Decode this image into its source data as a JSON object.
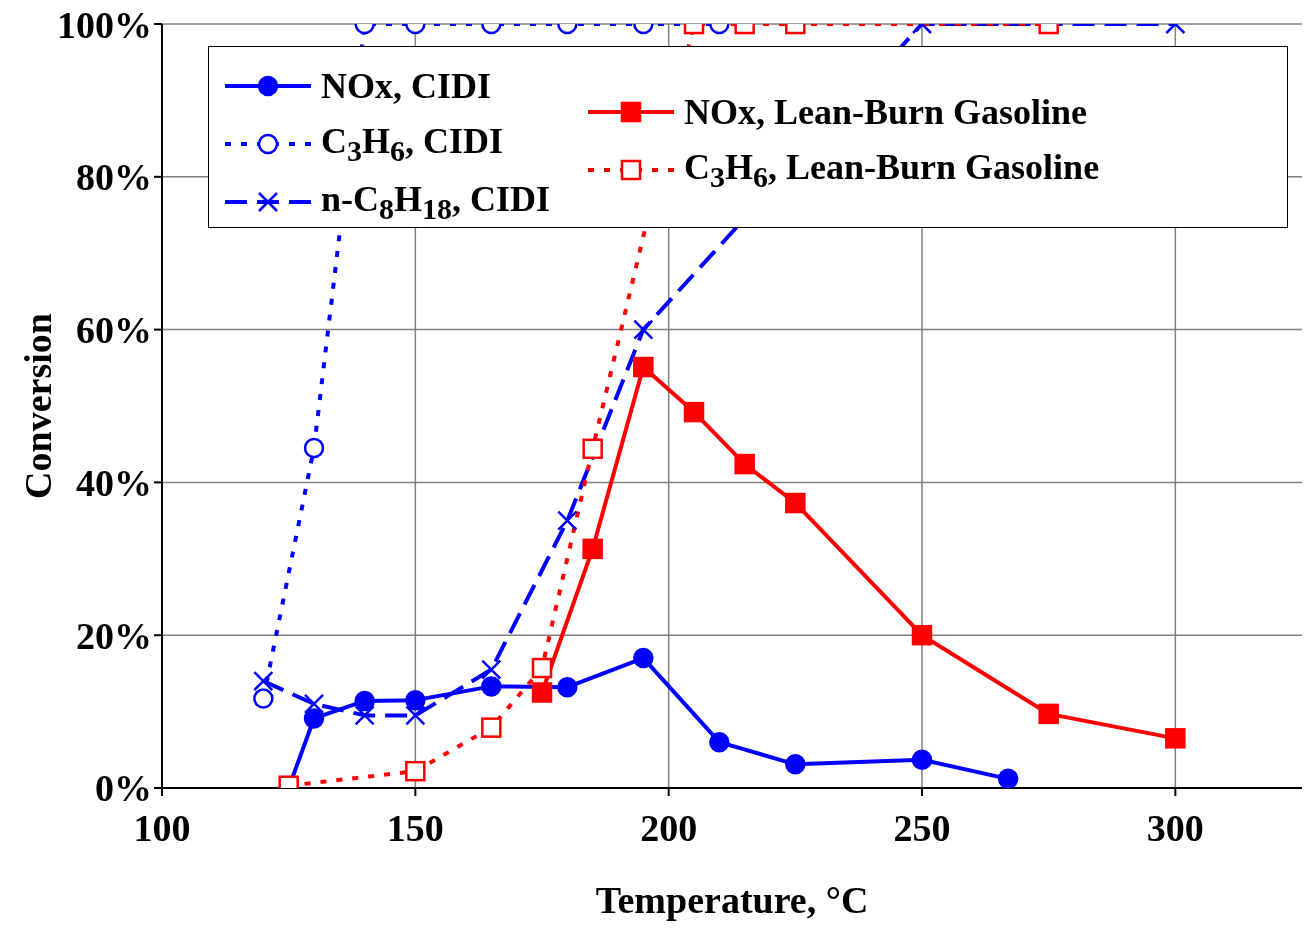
{
  "chart_data": {
    "type": "line",
    "xlabel": "Temperature, °C",
    "ylabel": "Conversion",
    "xlim": [
      100,
      325
    ],
    "xticks": [
      100,
      150,
      200,
      250,
      300
    ],
    "ylim": [
      0,
      100
    ],
    "yticks": [
      {
        "value": 0,
        "label": "0%"
      },
      {
        "value": 20,
        "label": "20%"
      },
      {
        "value": 40,
        "label": "40%"
      },
      {
        "value": 60,
        "label": "60%"
      },
      {
        "value": 80,
        "label": "80%"
      },
      {
        "value": 100,
        "label": "100%"
      }
    ],
    "grid": true,
    "legend": "top",
    "series": [
      {
        "name": "NOx, CIDI",
        "color": "#0000ff",
        "marker": "circle",
        "line_style": "solid",
        "x": [
          125,
          130,
          140,
          150,
          165,
          180,
          195,
          210,
          225,
          250,
          267
        ],
        "values": [
          0,
          9.1,
          11.4,
          11.5,
          13.3,
          13.2,
          17,
          6,
          3.1,
          3.7,
          1.2
        ]
      },
      {
        "name": "C$_{3}$H$_{6}$, CIDI",
        "color": "#0000ff",
        "marker": "circle",
        "line_style": "dotted",
        "x": [
          120,
          130,
          140,
          150,
          165,
          180,
          195,
          210
        ],
        "values": [
          11.7,
          44.5,
          100,
          100,
          100,
          100,
          100,
          100
        ]
      },
      {
        "name": "n-C$_{8}$H$_{18}$, CIDI",
        "color": "#0000ff",
        "marker": "cross",
        "line_style": "dashed",
        "x": [
          120,
          130,
          140,
          150,
          165,
          180,
          195,
          250,
          300
        ],
        "values": [
          14,
          11,
          9.5,
          9.5,
          15.5,
          35,
          60,
          100,
          100
        ]
      },
      {
        "name": "NOx, Lean-Burn Gasoline",
        "color": "#ff0000",
        "marker": "square",
        "line_style": "solid",
        "x": [
          175,
          185,
          195,
          205,
          215,
          225,
          250,
          275,
          300
        ],
        "values": [
          12.5,
          31.3,
          55.1,
          49.2,
          42.4,
          37.3,
          20,
          9.7,
          6.5
        ]
      },
      {
        "name": "C$_{3}$H$_{6}$, Lean-Burn Gasoline",
        "color": "#ff0000",
        "marker": "square",
        "line_style": "dotted",
        "x": [
          125,
          150,
          165,
          175,
          185,
          205,
          215,
          225,
          275
        ],
        "values": [
          0.3,
          2.2,
          7.9,
          15.7,
          44.4,
          100,
          100,
          100,
          100
        ]
      }
    ]
  }
}
